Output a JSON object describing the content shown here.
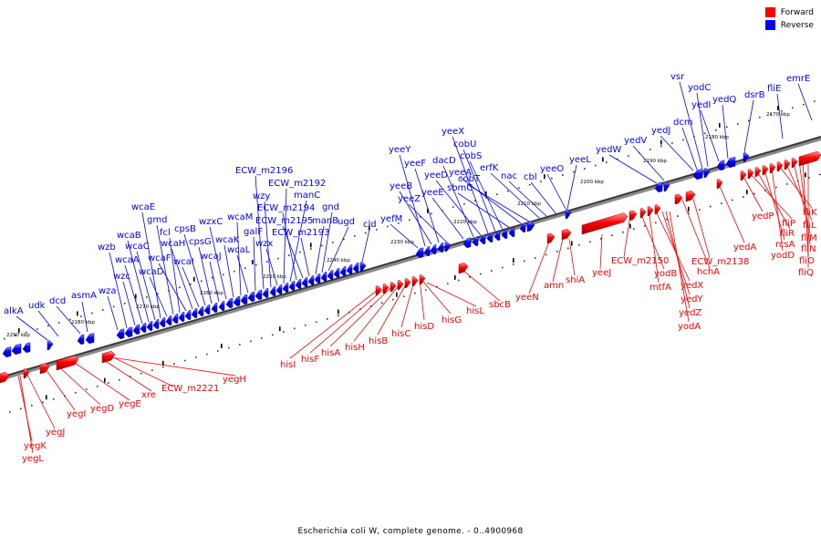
{
  "caption": "Escherichia coli W, complete genome. - 0..4900968",
  "legend": {
    "forward": {
      "label": "Forward",
      "color": "#ff0000"
    },
    "reverse": {
      "label": "Reverse",
      "color": "#0000ff"
    }
  },
  "axis_labels": [
    "2290 kbp",
    "2280 kbp",
    "2270 kbp",
    "2260 kbp",
    "2250 kbp",
    "2240 kbp",
    "2230 kbp",
    "2220 kbp",
    "2210 kbp",
    "2200 kbp",
    "2190 kbp",
    "2180 kbp",
    "2170 kbp"
  ],
  "reverse_genes": [
    "alkA",
    "udk",
    "dcd",
    "asmA",
    "wza",
    "wzb",
    "wzc",
    "wcaA",
    "wcaB",
    "wcaC",
    "wcaE",
    "wcaD",
    "gmd",
    "fcl",
    "wcaF",
    "wcaH",
    "wcaI",
    "cpsB",
    "cpsG",
    "wcaJ",
    "wzxC",
    "wcaK",
    "wcaM",
    "wcaL",
    "galF",
    "ECW_m2196",
    "wzy",
    "wzx",
    "ECW_m2192",
    "manC",
    "ECW_m2194",
    "ECW_m2195",
    "ECW_m2193",
    "manB",
    "gnd",
    "ugd",
    "cld",
    "yefM",
    "yeeY",
    "yeeB",
    "yeeF",
    "yeeZ",
    "yeeE",
    "dacD",
    "yeeD",
    "yeeX",
    "cobU",
    "cobS",
    "sbmC",
    "yeeA",
    "cobT",
    "erfK",
    "nac",
    "cbl",
    "yeeO",
    "yeeL",
    "yedW",
    "yedV",
    "yedJ",
    "dcm",
    "vsr",
    "yodC",
    "yedI",
    "yedQ",
    "dsrB",
    "fliE",
    "emrE"
  ],
  "forward_genes": [
    "yegK",
    "yegL",
    "yegJ",
    "yegI",
    "yegD",
    "yegE",
    "xre",
    "ECW_m2221",
    "yegH",
    "hisI",
    "hisF",
    "hisA",
    "hisH",
    "hisB",
    "hisC",
    "hisD",
    "hisG",
    "hisL",
    "sbcB",
    "yeeN",
    "amn",
    "shiA",
    "yeeJ",
    "ECW_m2150",
    "yodB",
    "mtfA",
    "yedX",
    "yedY",
    "yedZ",
    "yodA",
    "hchA",
    "ECW_m2138",
    "yedA",
    "yedP",
    "fliP",
    "fliR",
    "rcsA",
    "yodD",
    "fliK",
    "fliL",
    "fliM",
    "fliN",
    "fliO",
    "fliQ"
  ]
}
